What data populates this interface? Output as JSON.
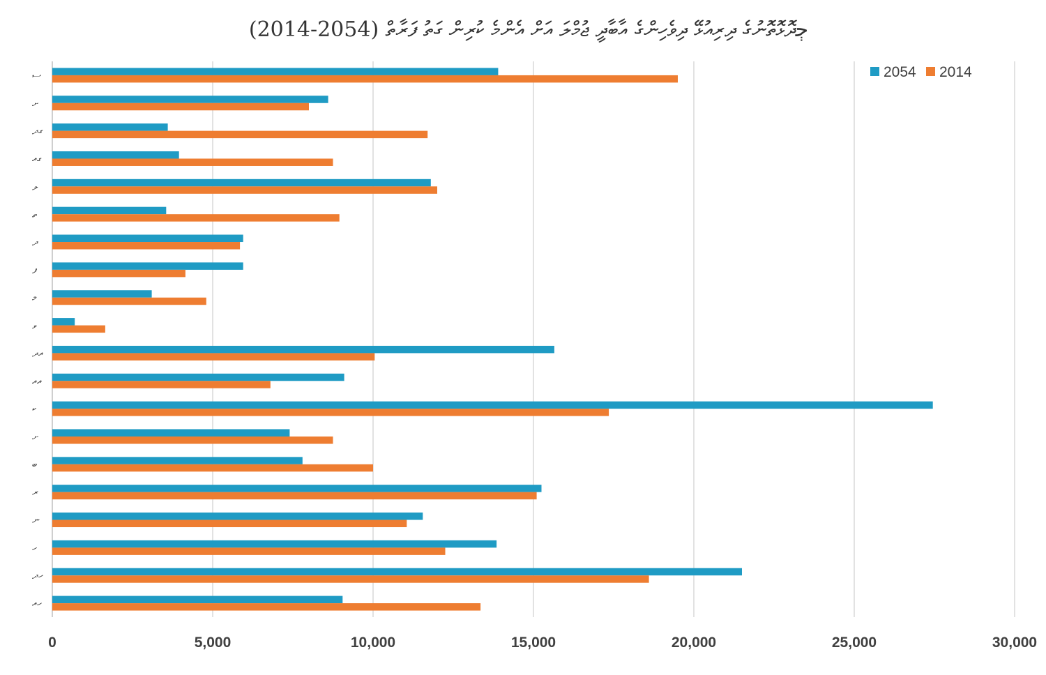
{
  "chart_data": {
    "type": "bar",
    "orientation": "horizontal",
    "title": "ﭴދޮޅޮތޮނުގެ ދިރިއުޅޭ ދިވެހިންގެ އާބާދީ ޖުމްލަ އަށް އެންމެ ކުރިން ގަތު ފަރާތް (2054-2014)",
    "categories": [
      "ސ",
      "ށ",
      "ގދ",
      "ގއ",
      "ލ",
      "ތ",
      "ދ",
      "ފ",
      "މ",
      "ވ",
      "އދ",
      "އއ",
      "ކ",
      "ށ",
      "ބ",
      "ރ",
      "ނ",
      "ހ",
      "ހދ",
      "ހއ"
    ],
    "series": [
      {
        "name": "2054",
        "color": "#1f9bc4",
        "values": [
          13900,
          8600,
          3600,
          3950,
          11800,
          3550,
          5950,
          5950,
          3100,
          700,
          15650,
          9100,
          27450,
          7400,
          7800,
          15250,
          11550,
          13850,
          21500,
          9050
        ]
      },
      {
        "name": "2014",
        "color": "#ee7d31",
        "values": [
          19500,
          8000,
          11700,
          8750,
          12000,
          8950,
          5850,
          4150,
          4800,
          1650,
          10050,
          6800,
          17350,
          8750,
          10000,
          15100,
          11050,
          12250,
          18600,
          13350
        ]
      }
    ],
    "xlim": [
      0,
      30000
    ],
    "xticks": [
      0,
      5000,
      10000,
      15000,
      20000,
      25000,
      30000
    ],
    "xtick_labels": [
      "0",
      "5,000",
      "10,000",
      "15,000",
      "20,000",
      "25,000",
      "30,000"
    ],
    "legend": [
      {
        "label": "2054",
        "color": "#1f9bc4"
      },
      {
        "label": "2014",
        "color": "#ee7d31"
      }
    ],
    "legend_position": "top-right",
    "grid": true
  }
}
